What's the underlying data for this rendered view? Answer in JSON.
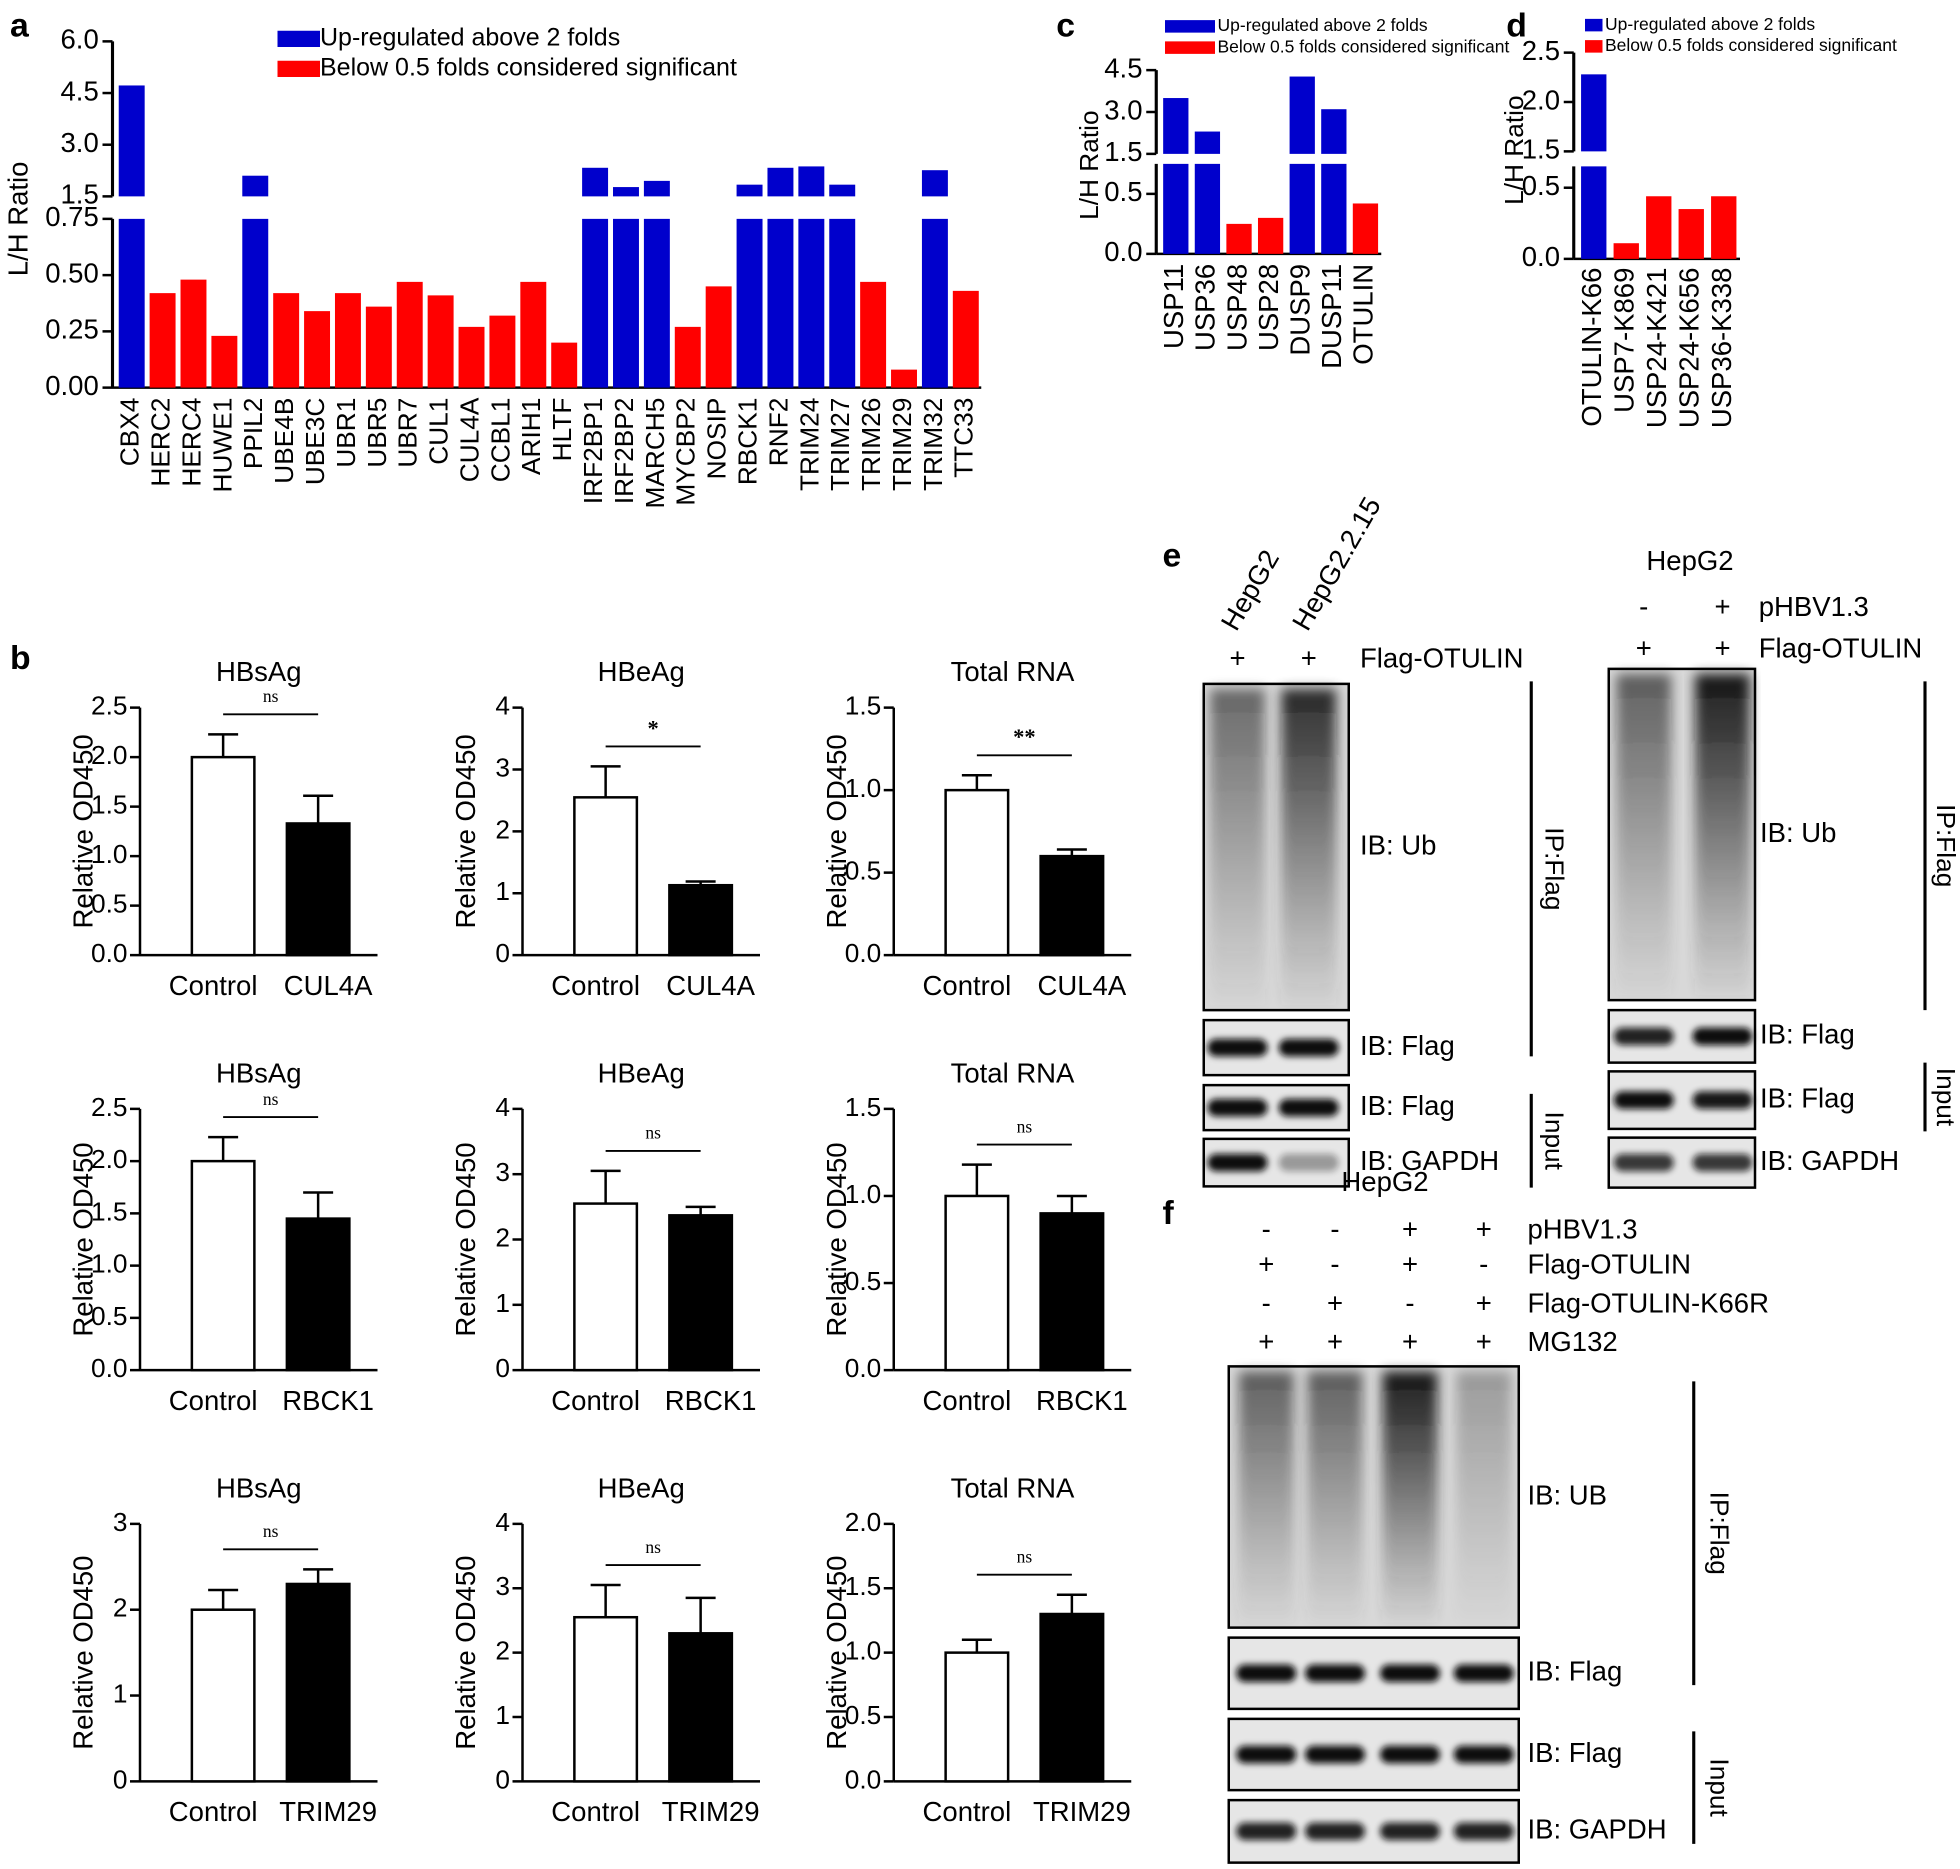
{
  "panel_labels": [
    "a",
    "b",
    "c",
    "d",
    "e",
    "f"
  ],
  "chart_data": [
    {
      "type": "broken_bar",
      "y_label": "L/H Ratio",
      "categories": [
        "CBX4",
        "HERC2",
        "HERC4",
        "HUWE1",
        "PPIL2",
        "UBE4B",
        "UBE3C",
        "UBR1",
        "UBR5",
        "UBR7",
        "CUL1",
        "CUL4A",
        "CCBL1",
        "ARIH1",
        "HLTF",
        "IRF2BP1",
        "IRF2BP2",
        "MARCH5",
        "MYCBP2",
        "NOSIP",
        "RBCK1",
        "RNF2",
        "TRIM24",
        "TRIM27",
        "TRIM26",
        "TRIM29",
        "TRIM32",
        "TTC33"
      ],
      "series": [
        {
          "name": "Up-regulated above 2 folds",
          "color": "#0000cc",
          "values": [
            4.72,
            null,
            null,
            null,
            2.1,
            null,
            null,
            null,
            null,
            null,
            null,
            null,
            null,
            null,
            null,
            2.33,
            1.77,
            1.95,
            null,
            null,
            1.84,
            2.33,
            2.37,
            1.84,
            null,
            null,
            2.26,
            null
          ]
        },
        {
          "name": "Below 0.5 folds considered significant",
          "color": "#ff0000",
          "values": [
            null,
            0.42,
            0.48,
            0.23,
            null,
            0.42,
            0.34,
            0.42,
            0.36,
            0.47,
            0.41,
            0.27,
            0.32,
            0.47,
            0.2,
            null,
            null,
            null,
            0.27,
            0.45,
            null,
            null,
            null,
            null,
            0.47,
            0.08,
            null,
            0.43
          ]
        }
      ],
      "y_segments": [
        {
          "ylim": [
            0,
            0.75
          ],
          "yticks": [
            {
              "value": 0,
              "label": "0.00"
            },
            0.25,
            {
              "value": 0.5,
              "label": "0.50"
            },
            0.75
          ]
        },
        {
          "ylim": [
            1.5,
            6.0
          ],
          "yticks": [
            1.5,
            {
              "value": 3,
              "label": "3.0"
            },
            4.5,
            {
              "value": 6,
              "label": "6.0"
            }
          ]
        }
      ]
    },
    {
      "type": "broken_bar",
      "y_label": "L/H Ratio",
      "categories": [
        "USP11",
        "USP36",
        "USP48",
        "USP28",
        "DUSP9",
        "DUSP11",
        "OTULIN"
      ],
      "series": [
        {
          "name": "Up-regulated above 2 folds",
          "color": "#0000cc",
          "values": [
            3.5,
            2.3,
            null,
            null,
            4.27,
            3.1,
            null
          ]
        },
        {
          "name": "Below 0.5 folds considered significant",
          "color": "#ff0000",
          "values": [
            null,
            null,
            0.25,
            0.3,
            null,
            null,
            0.42
          ]
        }
      ],
      "y_segments": [
        {
          "ylim": [
            0,
            0.75
          ],
          "yticks": [
            {
              "value": 0,
              "label": "0.0"
            },
            0.5
          ]
        },
        {
          "ylim": [
            1.5,
            4.5
          ],
          "yticks": [
            1.5,
            {
              "value": 3,
              "label": "3.0"
            },
            4.5
          ]
        }
      ]
    },
    {
      "type": "broken_bar",
      "y_label": "L/H Ratio",
      "categories": [
        "OTULIN-K66",
        "USP7-K869",
        "USP24-K421",
        "USP24-K656",
        "USP36-K338"
      ],
      "series": [
        {
          "name": "Up-regulated above 2 folds",
          "color": "#0000cc",
          "values": [
            2.28,
            null,
            null,
            null,
            null
          ]
        },
        {
          "name": "Below 0.5 folds considered significant",
          "color": "#ff0000",
          "values": [
            null,
            0.11,
            0.44,
            0.35,
            0.44
          ]
        }
      ],
      "y_segments": [
        {
          "ylim": [
            0,
            0.65
          ],
          "yticks": [
            {
              "value": 0,
              "label": "0.0"
            },
            0.5
          ]
        },
        {
          "ylim": [
            1.5,
            2.5
          ],
          "yticks": [
            1.5,
            {
              "value": 2,
              "label": "2.0"
            },
            2.5
          ]
        }
      ]
    },
    {
      "type": "bar_error",
      "title": "HBsAg",
      "y_label": "Relative OD450",
      "categories": [
        "Control",
        "CUL4A"
      ],
      "values": [
        2.0,
        1.33
      ],
      "errors": [
        0.23,
        0.28
      ],
      "colors": [
        "#ffffff",
        "#000000"
      ],
      "significance": "ns",
      "ylim": [
        0,
        2.5
      ],
      "yticks": [
        {
          "value": 0,
          "label": "0.0"
        },
        0.5,
        {
          "value": 1,
          "label": "1.0"
        },
        1.5,
        {
          "value": 2,
          "label": "2.0"
        },
        2.5
      ]
    },
    {
      "type": "bar_error",
      "title": "HBeAg",
      "y_label": "Relative OD450",
      "categories": [
        "Control",
        "CUL4A"
      ],
      "values": [
        2.55,
        1.13
      ],
      "errors": [
        0.5,
        0.06
      ],
      "colors": [
        "#ffffff",
        "#000000"
      ],
      "significance": "*",
      "ylim": [
        0,
        4
      ],
      "yticks": [
        0,
        1,
        2,
        3,
        4
      ]
    },
    {
      "type": "bar_error",
      "title": "Total RNA",
      "y_label": "Relative OD450",
      "categories": [
        "Control",
        "CUL4A"
      ],
      "values": [
        1.0,
        0.6
      ],
      "errors": [
        0.09,
        0.04
      ],
      "colors": [
        "#ffffff",
        "#000000"
      ],
      "significance": "**",
      "ylim": [
        0,
        1.5
      ],
      "yticks": [
        {
          "value": 0,
          "label": "0.0"
        },
        0.5,
        {
          "value": 1,
          "label": "1.0"
        },
        1.5
      ]
    },
    {
      "type": "bar_error",
      "title": "HBsAg",
      "y_label": "Relative OD450",
      "categories": [
        "Control",
        "RBCK1"
      ],
      "values": [
        2.0,
        1.45
      ],
      "errors": [
        0.23,
        0.25
      ],
      "colors": [
        "#ffffff",
        "#000000"
      ],
      "significance": "ns",
      "ylim": [
        0,
        2.5
      ],
      "yticks": [
        {
          "value": 0,
          "label": "0.0"
        },
        0.5,
        {
          "value": 1,
          "label": "1.0"
        },
        1.5,
        {
          "value": 2,
          "label": "2.0"
        },
        2.5
      ]
    },
    {
      "type": "bar_error",
      "title": "HBeAg",
      "y_label": "Relative OD450",
      "categories": [
        "Control",
        "RBCK1"
      ],
      "values": [
        2.55,
        2.37
      ],
      "errors": [
        0.5,
        0.13
      ],
      "colors": [
        "#ffffff",
        "#000000"
      ],
      "significance": "ns",
      "ylim": [
        0,
        4
      ],
      "yticks": [
        0,
        1,
        2,
        3,
        4
      ]
    },
    {
      "type": "bar_error",
      "title": "Total RNA",
      "y_label": "Relative OD450",
      "categories": [
        "Control",
        "RBCK1"
      ],
      "values": [
        1.0,
        0.9
      ],
      "errors": [
        0.18,
        0.1
      ],
      "colors": [
        "#ffffff",
        "#000000"
      ],
      "significance": "ns",
      "ylim": [
        0,
        1.5
      ],
      "yticks": [
        {
          "value": 0,
          "label": "0.0"
        },
        0.5,
        {
          "value": 1,
          "label": "1.0"
        },
        1.5
      ]
    },
    {
      "type": "bar_error",
      "title": "HBsAg",
      "y_label": "Relative OD450",
      "categories": [
        "Control",
        "TRIM29"
      ],
      "values": [
        2.0,
        2.3
      ],
      "errors": [
        0.23,
        0.17
      ],
      "colors": [
        "#ffffff",
        "#000000"
      ],
      "significance": "ns",
      "ylim": [
        0,
        3
      ],
      "yticks": [
        0,
        1,
        2,
        3
      ]
    },
    {
      "type": "bar_error",
      "title": "HBeAg",
      "y_label": "Relative OD450",
      "categories": [
        "Control",
        "TRIM29"
      ],
      "values": [
        2.55,
        2.3
      ],
      "errors": [
        0.5,
        0.55
      ],
      "colors": [
        "#ffffff",
        "#000000"
      ],
      "significance": "ns",
      "ylim": [
        0,
        4
      ],
      "yticks": [
        0,
        1,
        2,
        3,
        4
      ]
    },
    {
      "type": "bar_error",
      "title": "Total RNA",
      "y_label": "Relative OD450",
      "categories": [
        "Control",
        "TRIM29"
      ],
      "values": [
        1.0,
        1.3
      ],
      "errors": [
        0.1,
        0.15
      ],
      "colors": [
        "#ffffff",
        "#000000"
      ],
      "significance": "ns",
      "ylim": [
        0,
        2.0
      ],
      "yticks": [
        {
          "value": 0,
          "label": "0.0"
        },
        0.5,
        {
          "value": 1,
          "label": "1.0"
        },
        1.5,
        {
          "value": 2,
          "label": "2.0"
        }
      ]
    }
  ],
  "blots": [
    {
      "lanes": [
        "HepG2",
        "HepG2.2.15"
      ],
      "conditions": [
        {
          "label": "Flag-OTULIN",
          "signs": [
            "+",
            "+"
          ]
        }
      ],
      "blots": [
        "IB: Ub",
        "IB: Flag",
        "IB: Flag",
        "IB: GAPDH"
      ],
      "groups": [
        "IP:Flag",
        "Input"
      ]
    },
    {
      "cell": "HepG2",
      "conditions": [
        {
          "label": "pHBV1.3",
          "signs": [
            "-",
            "+"
          ]
        },
        {
          "label": "Flag-OTULIN",
          "signs": [
            "+",
            "+"
          ]
        }
      ],
      "blots": [
        "IB: Ub",
        "IB: Flag",
        "IB: Flag",
        "IB: GAPDH"
      ],
      "groups": [
        "IP:Flag",
        "Input"
      ]
    },
    {
      "cell": "HepG2",
      "conditions": [
        {
          "label": "pHBV1.3",
          "signs": [
            "-",
            "-",
            "+",
            "+"
          ]
        },
        {
          "label": "Flag-OTULIN",
          "signs": [
            "+",
            "-",
            "+",
            "-"
          ]
        },
        {
          "label": "Flag-OTULIN-K66R",
          "signs": [
            "-",
            "+",
            "-",
            "+"
          ]
        },
        {
          "label": "MG132",
          "signs": [
            "+",
            "+",
            "+",
            "+"
          ]
        }
      ],
      "blots": [
        "IB: UB",
        "IB: Flag",
        "IB: Flag",
        "IB: GAPDH"
      ],
      "groups": [
        "IP:Flag",
        "Input"
      ]
    }
  ]
}
